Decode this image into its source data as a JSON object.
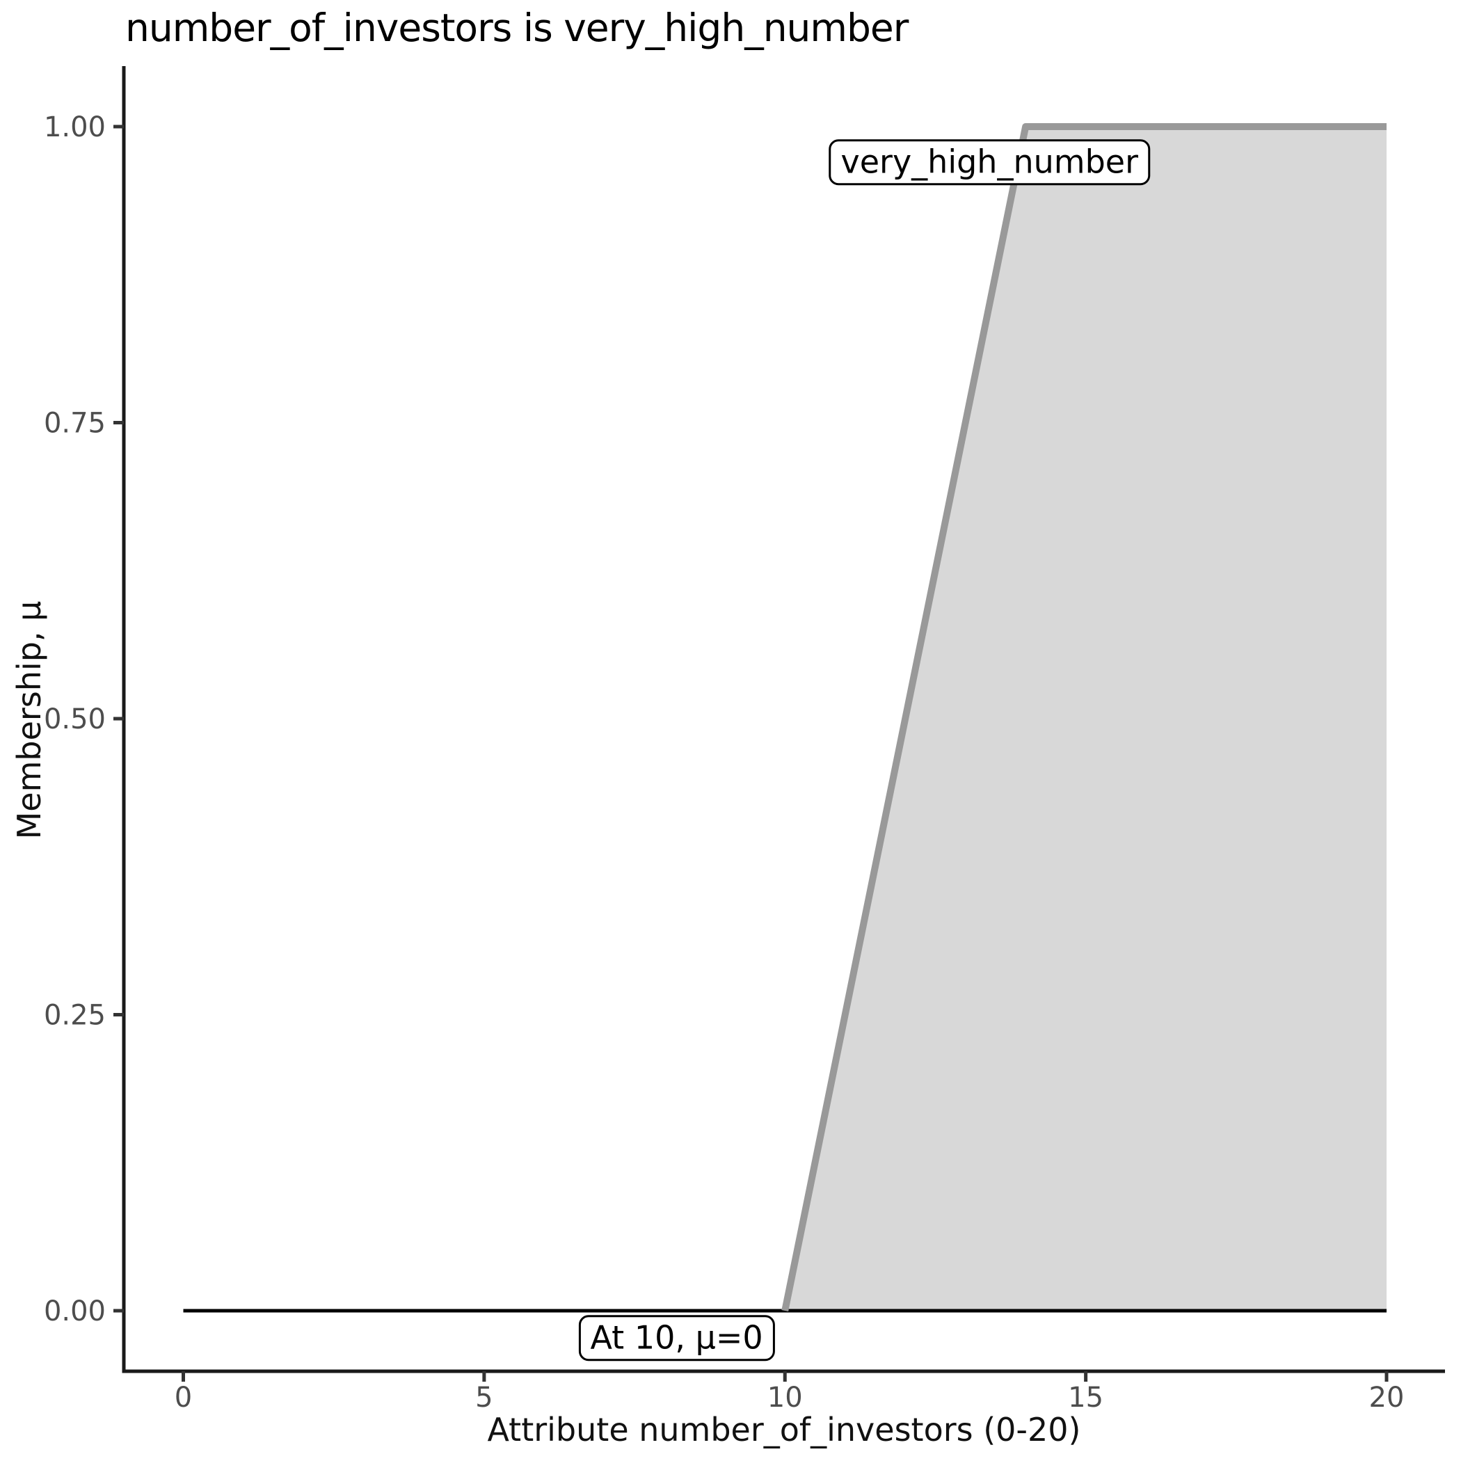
{
  "title": "number_of_investors is very_high_number",
  "axes": {
    "x": {
      "label": "Attribute number_of_investors (0-20)",
      "range": [
        0,
        20
      ],
      "ticks": [
        {
          "value": 0,
          "label": "0"
        },
        {
          "value": 5,
          "label": "5"
        },
        {
          "value": 10,
          "label": "10"
        },
        {
          "value": 15,
          "label": "15"
        },
        {
          "value": 20,
          "label": "20"
        }
      ]
    },
    "y": {
      "label": "Membership, μ",
      "range": [
        0,
        1
      ],
      "ticks": [
        {
          "value": 0,
          "label": "0.00"
        },
        {
          "value": 0.25,
          "label": "0.25"
        },
        {
          "value": 0.5,
          "label": "0.50"
        },
        {
          "value": 0.75,
          "label": "0.75"
        },
        {
          "value": 1,
          "label": "1.00"
        }
      ]
    }
  },
  "annotations": [
    {
      "text": "very_high_number",
      "x": 13.4,
      "mu": 0.97
    },
    {
      "text": "At 10, μ=0",
      "x": 8.2,
      "mu": -0.023
    }
  ],
  "colors": {
    "fill": "#d8d8d8",
    "curve": "#999999",
    "zero_line": "#000000",
    "axis": "#1a1a1a",
    "tick_mark": "#333333",
    "tick_label": "#4d4d4d"
  },
  "chart_data": {
    "type": "area",
    "title": "number_of_investors is very_high_number",
    "xlabel": "Attribute number_of_investors (0-20)",
    "ylabel": "Membership, μ",
    "xlim": [
      0,
      20
    ],
    "ylim": [
      0,
      1
    ],
    "grid": false,
    "legend": "none",
    "membership_function": {
      "set_name": "very_high_number",
      "shape": "trapezoid-right",
      "params": [
        10,
        14,
        20,
        20
      ],
      "note_points": [
        {
          "x": 10,
          "mu": 0
        },
        {
          "x": 14,
          "mu": 1
        },
        {
          "x": 20,
          "mu": 1
        }
      ]
    },
    "series": [
      {
        "name": "membership_curve",
        "color": "#999999",
        "width": 10,
        "points": [
          [
            10,
            0
          ],
          [
            14,
            1
          ],
          [
            20,
            1
          ]
        ]
      },
      {
        "name": "zero_line",
        "color": "#000000",
        "width": 5,
        "points": [
          [
            0,
            0
          ],
          [
            20,
            0
          ]
        ]
      }
    ],
    "fill_region": {
      "color": "#d8d8d8",
      "points": [
        [
          10,
          0
        ],
        [
          14,
          1
        ],
        [
          20,
          1
        ],
        [
          20,
          0
        ]
      ]
    }
  }
}
